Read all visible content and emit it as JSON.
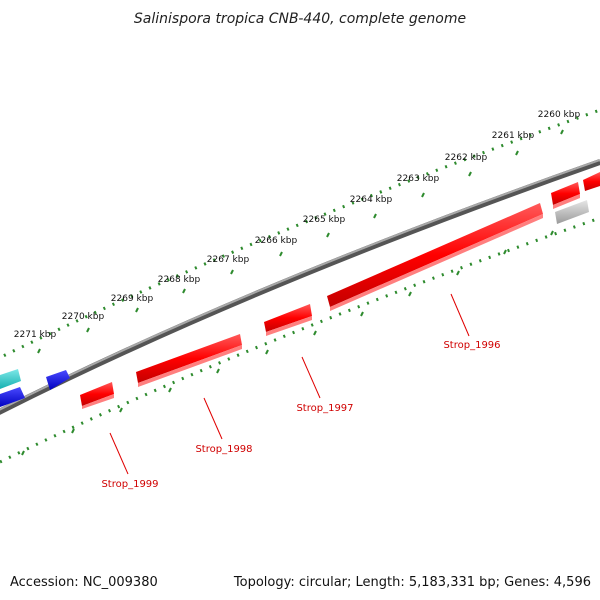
{
  "title": "Salinispora tropica CNB-440, complete genome",
  "footer": {
    "accession": "Accession: NC_009380",
    "summary": "Topology: circular; Length: 5,183,331 bp; Genes: 4,596"
  },
  "colors": {
    "backbone": "#707070",
    "tick": "#2e8b2e",
    "gene_red": "#ff1a1a",
    "gene_blue": "#0a0ae0",
    "gene_cyan": "#22c8c8",
    "gene_gray": "#bdbdbd",
    "label_text": "#d00000"
  },
  "scale_labels": [
    "2260 kbp",
    "2261 kbp",
    "2262 kbp",
    "2263 kbp",
    "2264 kbp",
    "2265 kbp",
    "2266 kbp",
    "2267 kbp",
    "2268 kbp",
    "2269 kbp",
    "2270 kbp",
    "2271 kbp"
  ],
  "gene_labels": [
    {
      "id": "strop-1996",
      "text": "Strop_1996"
    },
    {
      "id": "strop-1997",
      "text": "Strop_1997"
    },
    {
      "id": "strop-1998",
      "text": "Strop_1998"
    },
    {
      "id": "strop-1999",
      "text": "Strop_1999"
    }
  ]
}
